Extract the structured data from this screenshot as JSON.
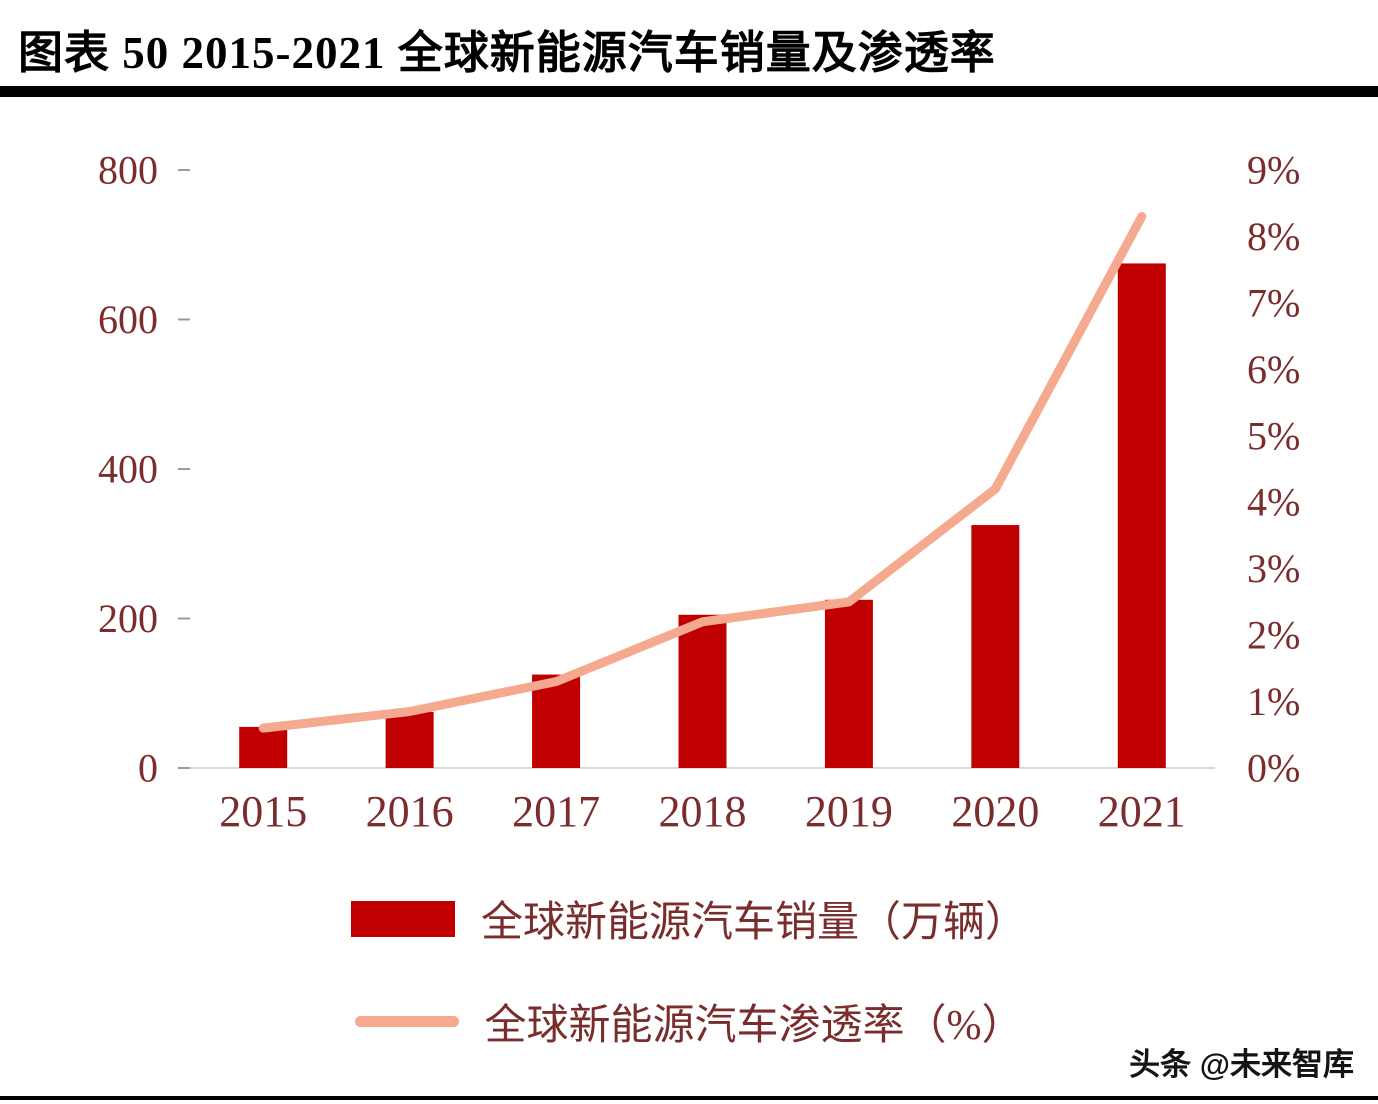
{
  "header": {
    "title": "图表 50 2015-2021 全球新能源汽车销量及渗透率"
  },
  "chart_data": {
    "type": "bar",
    "subtype": "combo-bar-line",
    "title": "2015-2021 全球新能源汽车销量及渗透率",
    "categories": [
      "2015",
      "2016",
      "2017",
      "2018",
      "2019",
      "2020",
      "2021"
    ],
    "series": [
      {
        "name": "全球新能源汽车销量（万辆）",
        "type": "bar",
        "axis": "left",
        "color": "#c00000",
        "values": [
          55,
          75,
          125,
          205,
          225,
          325,
          675
        ]
      },
      {
        "name": "全球新能源汽车渗透率（%）",
        "type": "line",
        "axis": "right",
        "color": "#f5a98f",
        "values": [
          0.6,
          0.85,
          1.3,
          2.2,
          2.5,
          4.2,
          8.3
        ]
      }
    ],
    "left_axis": {
      "min": 0,
      "max": 800,
      "step": 200,
      "tick_labels": [
        "0",
        "200",
        "400",
        "600",
        "800"
      ]
    },
    "right_axis": {
      "min": 0,
      "max": 9,
      "step": 1,
      "tick_labels": [
        "0%",
        "1%",
        "2%",
        "3%",
        "4%",
        "5%",
        "6%",
        "7%",
        "8%",
        "9%"
      ]
    },
    "grid": false,
    "legend_position": "bottom"
  },
  "legend": {
    "items": [
      {
        "label": "全球新能源汽车销量（万辆）",
        "swatch": "bar",
        "color": "#c00000"
      },
      {
        "label": "全球新能源汽车渗透率（%）",
        "swatch": "line",
        "color": "#f5a98f"
      }
    ]
  },
  "watermark": {
    "text": "头条 @未来智库"
  },
  "colors": {
    "bar": "#c00000",
    "line": "#f5a98f",
    "axis_label": "#7b2c2c",
    "title": "#000000",
    "divider": "#000000",
    "baseline": "#d9d9d9",
    "tick": "#9a9a9a"
  }
}
